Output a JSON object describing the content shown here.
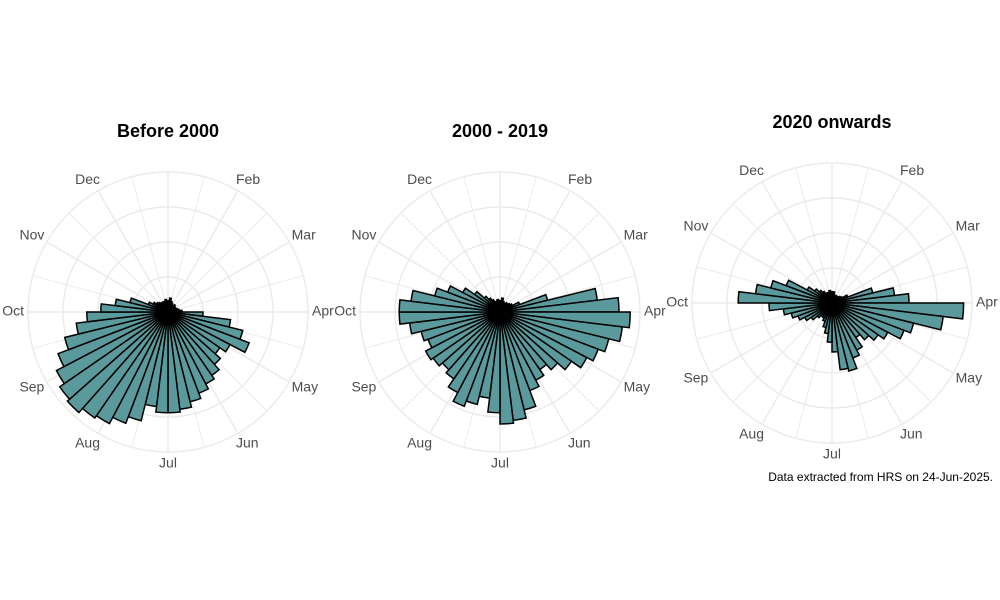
{
  "chart_data": [
    {
      "type": "polar-bar",
      "title": "Before 2000",
      "color": "#5b9a9c",
      "theta_labels": [
        null,
        "Feb",
        "Mar",
        "Apr",
        "May",
        "Jun",
        "Jul",
        "Aug",
        "Sep",
        "Oct",
        "Nov",
        "Dec"
      ],
      "rlim": [
        0,
        100
      ],
      "rticks": [
        25,
        50,
        75,
        100
      ],
      "values": [
        8,
        10,
        8,
        7,
        6,
        6,
        7,
        6,
        6,
        6,
        7,
        8,
        10,
        25,
        45,
        55,
        62,
        50,
        45,
        50,
        55,
        58,
        62,
        66,
        70,
        72,
        72,
        68,
        80,
        85,
        90,
        92,
        96,
        94,
        90,
        84,
        76,
        66,
        58,
        48,
        38,
        28,
        15,
        12,
        10,
        9,
        8,
        8,
        7,
        8,
        9,
        8
      ]
    },
    {
      "type": "polar-bar",
      "title": "2000 - 2019",
      "color": "#5b9a9c",
      "theta_labels": [
        null,
        "Feb",
        "Mar",
        "Apr",
        "May",
        "Jun",
        "Jul",
        "Aug",
        "Sep",
        "Oct",
        "Nov",
        "Dec"
      ],
      "rlim": [
        0,
        100
      ],
      "rticks": [
        25,
        50,
        75,
        100
      ],
      "values": [
        8,
        10,
        8,
        7,
        7,
        8,
        8,
        9,
        10,
        15,
        35,
        70,
        85,
        93,
        88,
        80,
        75,
        70,
        62,
        55,
        50,
        55,
        60,
        72,
        78,
        80,
        72,
        62,
        68,
        72,
        65,
        58,
        55,
        58,
        60,
        55,
        58,
        65,
        72,
        72,
        64,
        48,
        40,
        30,
        22,
        15,
        12,
        10,
        8,
        8,
        9,
        8
      ]
    },
    {
      "type": "polar-bar",
      "title": "2020 onwards",
      "color": "#5b9a9c",
      "theta_labels": [
        null,
        "Feb",
        "Mar",
        "Apr",
        "May",
        "Jun",
        "Jul",
        "Aug",
        "Sep",
        "Oct",
        "Nov",
        "Dec"
      ],
      "rlim": [
        0,
        100
      ],
      "rticks": [
        25,
        50,
        75,
        100
      ],
      "values": [
        8,
        8,
        6,
        6,
        6,
        5,
        6,
        7,
        8,
        12,
        30,
        45,
        55,
        94,
        80,
        60,
        55,
        45,
        40,
        35,
        30,
        38,
        42,
        50,
        48,
        35,
        28,
        22,
        18,
        14,
        12,
        12,
        14,
        18,
        22,
        26,
        30,
        35,
        45,
        67,
        55,
        45,
        35,
        20,
        15,
        12,
        10,
        8,
        8,
        8,
        9,
        8
      ]
    }
  ],
  "caption": "Data extracted from HRS on 24-Jun-2025."
}
